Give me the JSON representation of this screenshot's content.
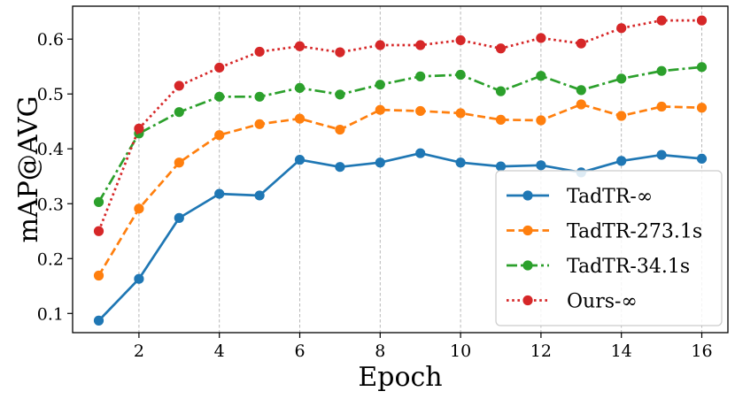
{
  "chart_data": {
    "type": "line",
    "title": "",
    "xlabel": "Epoch",
    "ylabel": "mAP@AVG",
    "xlim": [
      0.35,
      16.65
    ],
    "ylim": [
      0.065,
      0.66
    ],
    "grid": "vertical-dashed",
    "legend_position": "lower-right",
    "x": [
      1,
      2,
      3,
      4,
      5,
      6,
      7,
      8,
      9,
      10,
      11,
      12,
      13,
      14,
      15,
      16
    ],
    "xticks": [
      2,
      4,
      6,
      8,
      10,
      12,
      14,
      16
    ],
    "xtick_labels": [
      "2",
      "4",
      "6",
      "8",
      "10",
      "12",
      "14",
      "16"
    ],
    "yticks": [
      0.1,
      0.2,
      0.3,
      0.4,
      0.5,
      0.6
    ],
    "ytick_labels": [
      "0.1",
      "0.2",
      "0.3",
      "0.4",
      "0.5",
      "0.6"
    ],
    "series": [
      {
        "name": "TadTR-∞",
        "color": "#1f77b4",
        "linestyle": "solid",
        "values": [
          0.087,
          0.163,
          0.274,
          0.318,
          0.315,
          0.38,
          0.367,
          0.375,
          0.392,
          0.375,
          0.368,
          0.37,
          0.357,
          0.378,
          0.389,
          0.382
        ]
      },
      {
        "name": "TadTR-273.1s",
        "color": "#ff7f0e",
        "linestyle": "dashed",
        "values": [
          0.169,
          0.291,
          0.375,
          0.425,
          0.445,
          0.455,
          0.435,
          0.471,
          0.469,
          0.465,
          0.453,
          0.452,
          0.481,
          0.46,
          0.477,
          0.475
        ]
      },
      {
        "name": "TadTR-34.1s",
        "color": "#2ca02c",
        "linestyle": "dashdot",
        "values": [
          0.303,
          0.428,
          0.467,
          0.495,
          0.495,
          0.511,
          0.499,
          0.517,
          0.532,
          0.535,
          0.505,
          0.533,
          0.507,
          0.528,
          0.542,
          0.549
        ]
      },
      {
        "name": "Ours-∞",
        "color": "#d62728",
        "linestyle": "dotted",
        "values": [
          0.25,
          0.437,
          0.515,
          0.548,
          0.577,
          0.587,
          0.576,
          0.589,
          0.589,
          0.598,
          0.583,
          0.602,
          0.592,
          0.62,
          0.634,
          0.634
        ]
      }
    ]
  }
}
